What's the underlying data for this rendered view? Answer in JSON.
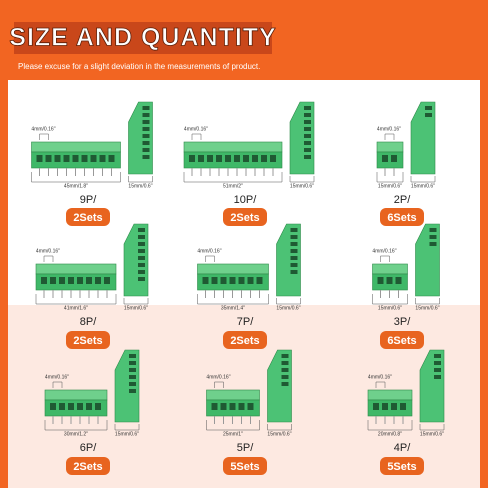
{
  "header": {
    "title": "SIZE AND QUANTITY",
    "subtitle": "Please excuse for a slight deviation in the measurements of product."
  },
  "items": [
    {
      "count": "9P/",
      "sets": "2Sets",
      "pitch": "4mm/0.16''",
      "width": "45mm/1.8''",
      "height": "15mm/0.6''"
    },
    {
      "count": "10P/",
      "sets": "2Sets",
      "pitch": "4mm/0.16''",
      "width": "51mm/2''",
      "height": "15mm/0.6''"
    },
    {
      "count": "2P/",
      "sets": "6Sets",
      "pitch": "4mm/0.16''",
      "width": "15mm/0.6''",
      "height": "15mm/0.6''"
    },
    {
      "count": "8P/",
      "sets": "2Sets",
      "pitch": "4mm/0.16''",
      "width": "41mm/1.6''",
      "height": "15mm/0.6''"
    },
    {
      "count": "7P/",
      "sets": "2Sets",
      "pitch": "4mm/0.16''",
      "width": "35mm/1.4''",
      "height": "15mm/0.6''"
    },
    {
      "count": "3P/",
      "sets": "6Sets",
      "pitch": "4mm/0.16''",
      "width": "15mm/0.6''",
      "height": "15mm/0.6''"
    },
    {
      "count": "6P/",
      "sets": "2Sets",
      "pitch": "4mm/0.16''",
      "width": "30mm/1.2''",
      "height": "15mm/0.6''"
    },
    {
      "count": "5P/",
      "sets": "5Sets",
      "pitch": "4mm/0.16''",
      "width": "25mm/1''",
      "height": "15mm/0.6''"
    },
    {
      "count": "4P/",
      "sets": "5Sets",
      "pitch": "4mm/0.16''",
      "width": "20mm/0.8''",
      "height": "15mm/0.6''"
    }
  ]
}
